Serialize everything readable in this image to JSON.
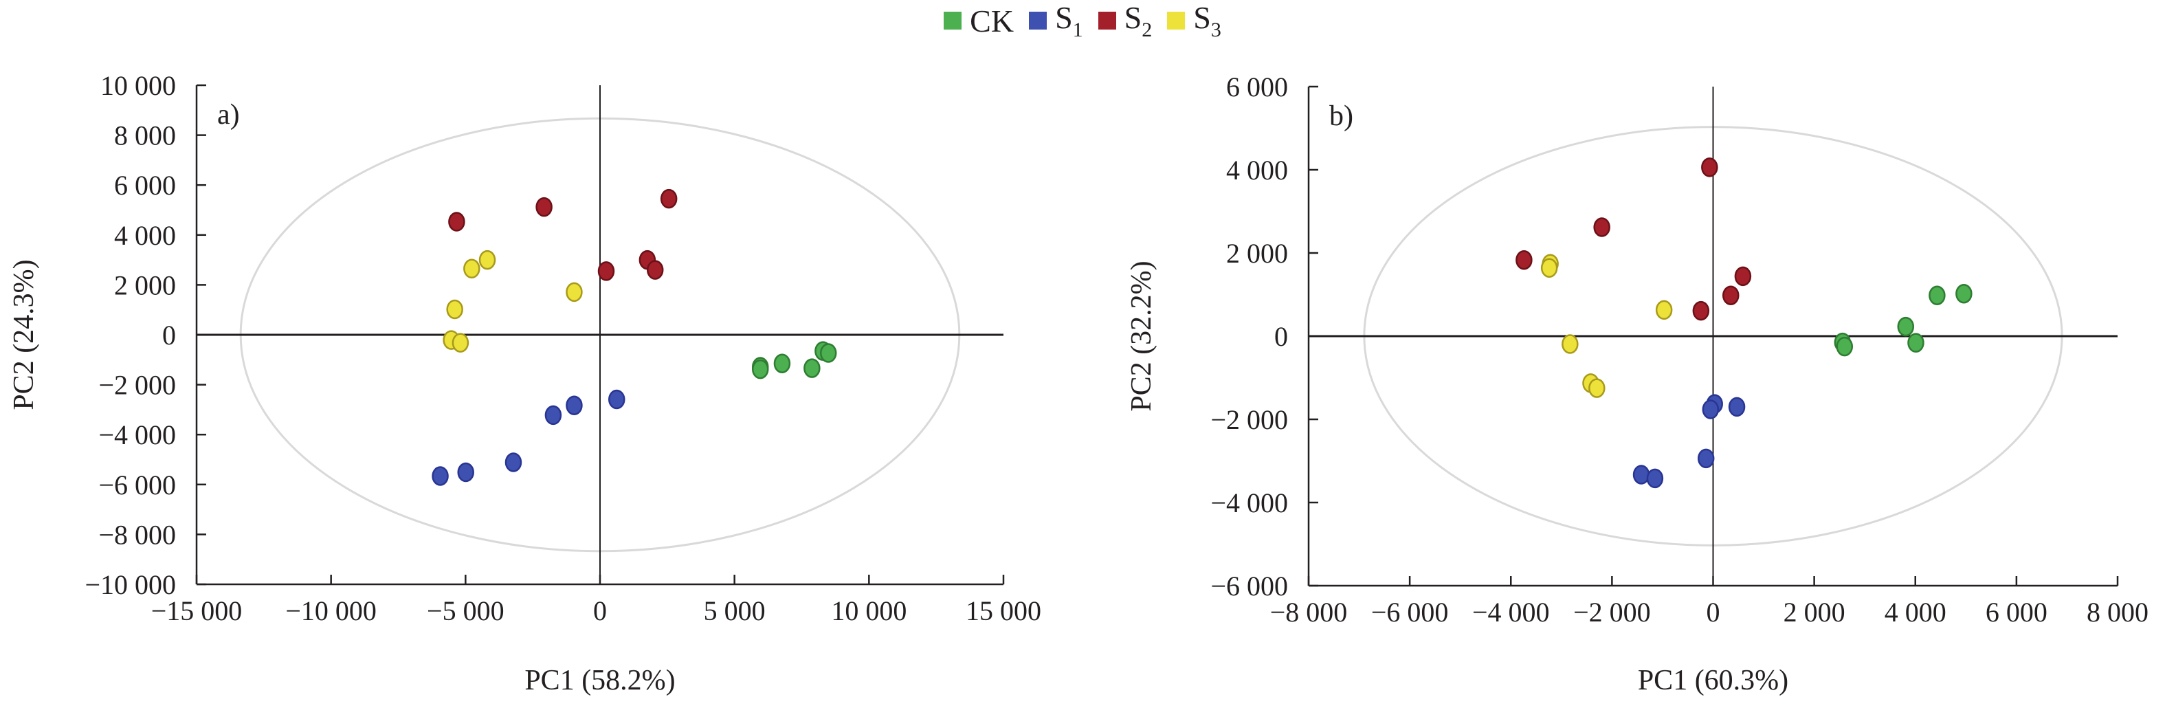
{
  "legend": [
    {
      "label": "CK",
      "sub": "",
      "color": "#4caf50"
    },
    {
      "label": "S",
      "sub": "1",
      "color": "#3f51b0"
    },
    {
      "label": "S",
      "sub": "2",
      "color": "#a3202a"
    },
    {
      "label": "S",
      "sub": "3",
      "color": "#ece23a"
    }
  ],
  "chart_data": [
    {
      "type": "scatter",
      "panel_label": "a)",
      "xlabel": "PC1 (58.2%)",
      "ylabel": "PC2 (24.3%)",
      "xlim": [
        -15000,
        15000
      ],
      "ylim": [
        -10000,
        10000
      ],
      "xticks": [
        -15000,
        -10000,
        -5000,
        0,
        5000,
        10000,
        15000
      ],
      "xtick_labels": [
        "−15 000",
        "−10 000",
        "−5 000",
        "0",
        "5 000",
        "10 000",
        "15 000"
      ],
      "yticks": [
        10000,
        8000,
        6000,
        4000,
        2000,
        0,
        -2000,
        -4000,
        -6000,
        -8000,
        -10000
      ],
      "ytick_labels": [
        "10 000",
        "8 000",
        "6 000",
        "4 000",
        "2 000",
        "0",
        "−2 000",
        "−4 000",
        "−6 000",
        "−8 000",
        "−10 000"
      ],
      "ellipse": {
        "rx": 13360,
        "ry": 8670
      },
      "series": [
        {
          "name": "CK",
          "points": [
            [
              5960,
              -1280
            ],
            [
              5960,
              -1380
            ],
            [
              6770,
              -1150
            ],
            [
              7880,
              -1340
            ],
            [
              8290,
              -650
            ],
            [
              8490,
              -730
            ]
          ]
        },
        {
          "name": "S1",
          "points": [
            [
              620,
              -2590
            ],
            [
              -960,
              -2830
            ],
            [
              -1740,
              -3220
            ],
            [
              -3220,
              -5110
            ],
            [
              -4990,
              -5510
            ],
            [
              -5940,
              -5660
            ]
          ]
        },
        {
          "name": "S2",
          "points": [
            [
              -5330,
              4530
            ],
            [
              -2080,
              5120
            ],
            [
              2560,
              5450
            ],
            [
              230,
              2550
            ],
            [
              1760,
              3000
            ],
            [
              2050,
              2600
            ]
          ]
        },
        {
          "name": "S3",
          "points": [
            [
              -4190,
              3000
            ],
            [
              -4770,
              2650
            ],
            [
              -960,
              1710
            ],
            [
              -5400,
              1020
            ],
            [
              -5530,
              -210
            ],
            [
              -5190,
              -320
            ]
          ]
        }
      ]
    },
    {
      "type": "scatter",
      "panel_label": "b)",
      "xlabel": "PC1 (60.3%)",
      "ylabel": "PC2 (32.2%)",
      "xlim": [
        -8000,
        8000
      ],
      "ylim": [
        -6000,
        6000
      ],
      "xticks": [
        -8000,
        -6000,
        -4000,
        -2000,
        0,
        2000,
        4000,
        6000,
        8000
      ],
      "xtick_labels": [
        "−8 000",
        "−6 000",
        "−4 000",
        "−2 000",
        "0",
        "2 000",
        "4 000",
        "6 000",
        "8 000"
      ],
      "yticks": [
        6000,
        4000,
        2000,
        0,
        -2000,
        -4000,
        -6000
      ],
      "ytick_labels": [
        "6 000",
        "4 000",
        "2 000",
        "0",
        "−2 000",
        "−4 000",
        "−6 000"
      ],
      "ellipse": {
        "rx": 6900,
        "ry": 5030
      },
      "series": [
        {
          "name": "CK",
          "points": [
            [
              4430,
              980
            ],
            [
              4960,
              1020
            ],
            [
              3810,
              230
            ],
            [
              4010,
              -160
            ],
            [
              2560,
              -150
            ],
            [
              2600,
              -250
            ]
          ]
        },
        {
          "name": "S1",
          "points": [
            [
              30,
              -1630
            ],
            [
              -50,
              -1760
            ],
            [
              470,
              -1700
            ],
            [
              -140,
              -2940
            ],
            [
              -1420,
              -3330
            ],
            [
              -1150,
              -3420
            ]
          ]
        },
        {
          "name": "S2",
          "points": [
            [
              -70,
              4060
            ],
            [
              -2200,
              2620
            ],
            [
              -3740,
              1830
            ],
            [
              590,
              1440
            ],
            [
              350,
              980
            ],
            [
              -240,
              610
            ]
          ]
        },
        {
          "name": "S3",
          "points": [
            [
              -3220,
              1740
            ],
            [
              -3240,
              1640
            ],
            [
              -970,
              630
            ],
            [
              -2830,
              -190
            ],
            [
              -2420,
              -1130
            ],
            [
              -2300,
              -1250
            ]
          ]
        }
      ]
    }
  ]
}
